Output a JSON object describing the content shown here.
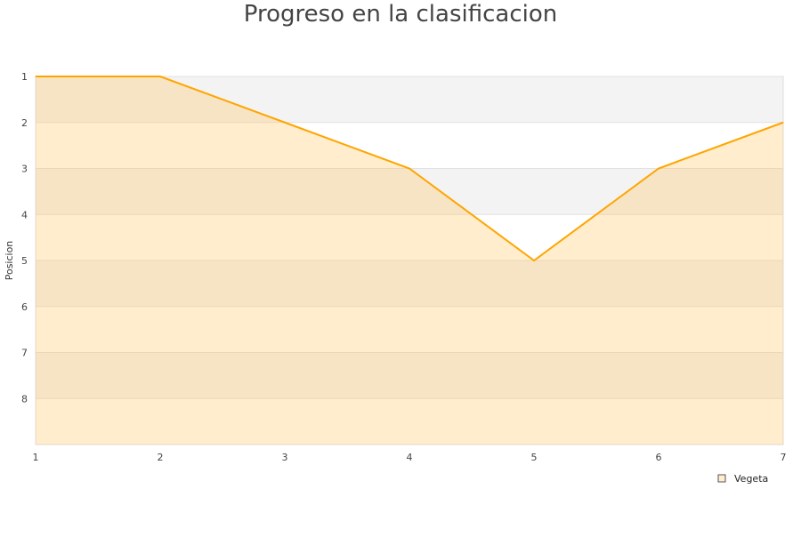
{
  "chart_data": {
    "type": "area",
    "title": "Progreso en la clasificacion",
    "xlabel": "",
    "ylabel": "Posicion",
    "x": [
      1,
      2,
      3,
      4,
      5,
      6,
      7
    ],
    "xlim": [
      1,
      7
    ],
    "ylim": [
      1,
      9
    ],
    "y_inverted": true,
    "yticks": [
      1,
      2,
      3,
      4,
      5,
      6,
      7,
      8
    ],
    "grid": true,
    "legend_position": "bottom-right",
    "series": [
      {
        "name": "Vegeta",
        "values": [
          1,
          1,
          2,
          3,
          5,
          3,
          2
        ],
        "color": "#ffa500",
        "fill": "#ffedcc"
      }
    ],
    "band_color": "#f3f3f3"
  }
}
